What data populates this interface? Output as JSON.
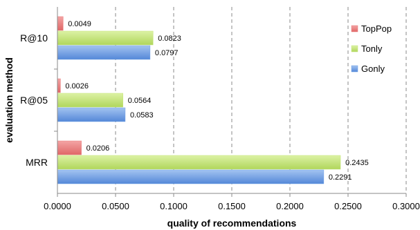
{
  "chart_data": {
    "type": "bar",
    "orientation": "horizontal",
    "xlabel": "quality of recommendations",
    "ylabel": "evaluation method",
    "xlim": [
      0,
      0.3
    ],
    "x_ticks": [
      "0.0000",
      "0.0500",
      "0.1000",
      "0.1500",
      "0.2000",
      "0.2500",
      "0.3000"
    ],
    "categories": [
      "R@10",
      "R@05",
      "MRR"
    ],
    "grid": "vertical dashed",
    "legend": "right",
    "series": [
      {
        "name": "TopPop",
        "color": "#e97b7b",
        "values": [
          0.0049,
          0.0026,
          0.0206
        ],
        "labels": [
          "0.0049",
          "0.0026",
          "0.0206"
        ]
      },
      {
        "name": "Tonly",
        "color": "#c6e57c",
        "values": [
          0.0823,
          0.0564,
          0.2435
        ],
        "labels": [
          "0.0823",
          "0.0564",
          "0.2435"
        ]
      },
      {
        "name": "Gonly",
        "color": "#6fa0e6",
        "values": [
          0.0797,
          0.0583,
          0.2291
        ],
        "labels": [
          "0.0797",
          "0.0583",
          "0.2291"
        ]
      }
    ]
  }
}
